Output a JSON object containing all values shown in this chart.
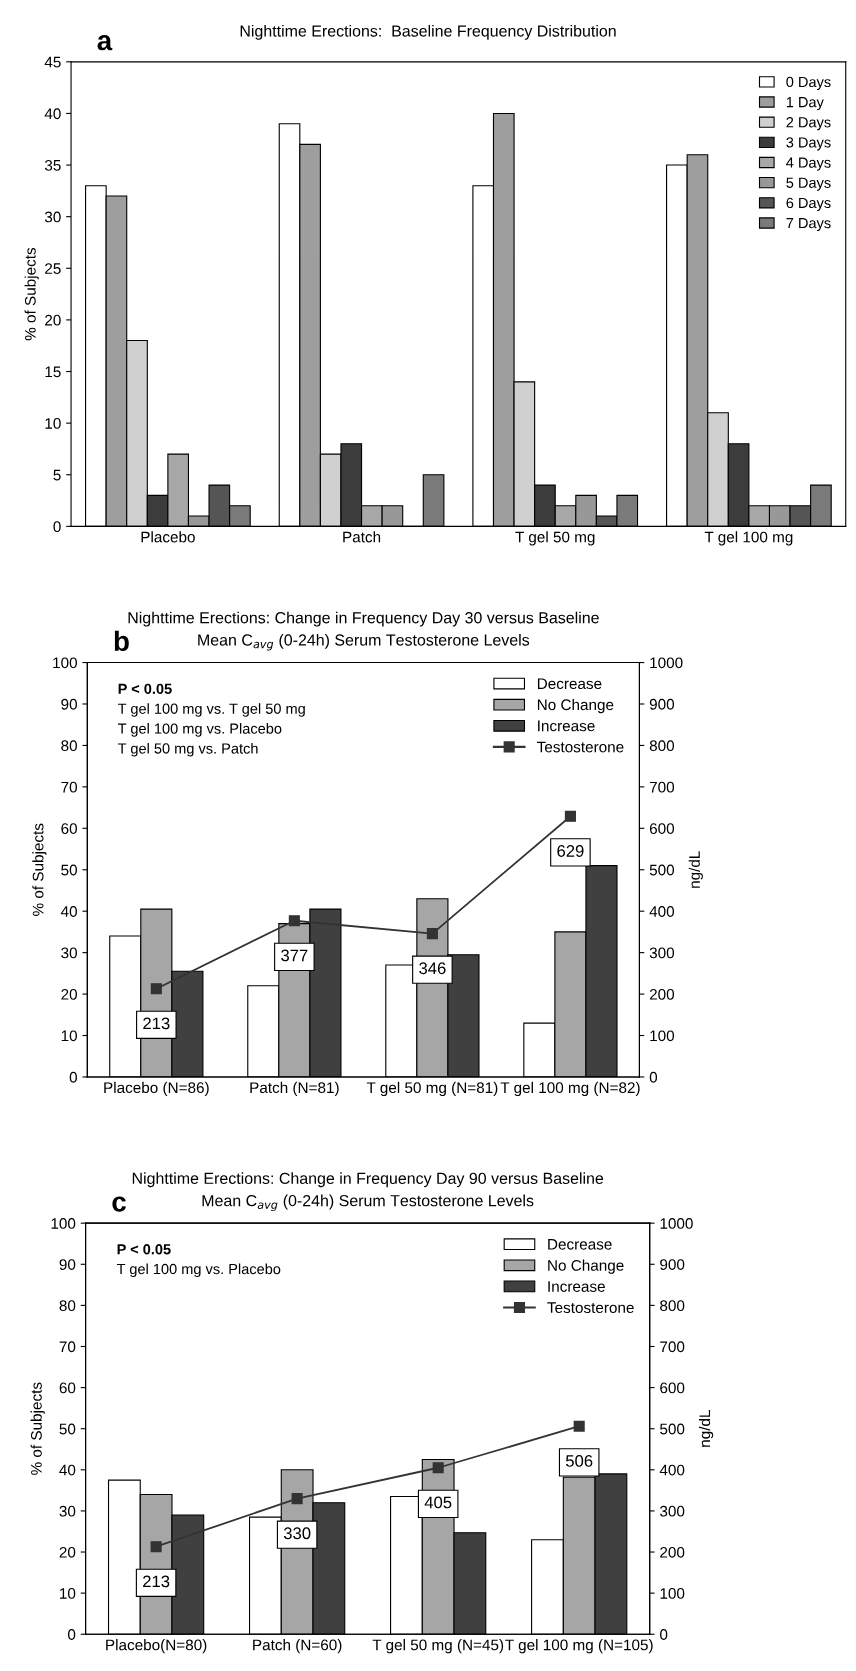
{
  "chart_data": [
    {
      "type": "bar",
      "title": "Nighttime Erections:  Baseline Frequency Distribution",
      "ylabel": "% of Subjects",
      "categories": [
        "Placebo",
        "Patch",
        "T gel 50 mg",
        "T gel 100 mg"
      ],
      "ylim": [
        0,
        45
      ],
      "yticks": [
        0,
        5,
        10,
        15,
        20,
        25,
        30,
        35,
        40,
        45
      ],
      "grid": false,
      "legend": "top right",
      "annotations": [
        "a"
      ],
      "series": [
        {
          "name": "0 Days",
          "color": "#ffffff",
          "values": [
            33,
            39,
            33,
            35
          ]
        },
        {
          "name": "1 Day",
          "color": "#9e9e9e",
          "values": [
            32,
            37,
            40,
            36
          ]
        },
        {
          "name": "2 Days",
          "color": "#d0d0d0",
          "values": [
            18,
            7,
            14,
            11
          ]
        },
        {
          "name": "3 Days",
          "color": "#3c3c3c",
          "values": [
            3,
            8,
            4,
            8
          ]
        },
        {
          "name": "4 Days",
          "color": "#a8a8a8",
          "values": [
            7,
            2,
            2,
            2
          ]
        },
        {
          "name": "5 Days",
          "color": "#989898",
          "values": [
            1,
            2,
            3,
            2
          ]
        },
        {
          "name": "6 Days",
          "color": "#555555",
          "values": [
            4,
            0,
            1,
            2
          ]
        },
        {
          "name": "7 Days",
          "color": "#7a7a7a",
          "values": [
            2,
            5,
            3,
            4
          ]
        }
      ]
    },
    {
      "type": "bar",
      "title": "Nighttime Erections: Change in Frequency Day 30 versus Baseline",
      "subtitle": "Mean C$_{avg}$ (0-24h) Serum Testosterone Levels",
      "ylabel": "% of Subjects",
      "y2label": "ng/dL",
      "categories": [
        "Placebo (N=86)",
        "Patch (N=81)",
        "T gel 50 mg (N=81)",
        "T gel 100 mg (N=82)"
      ],
      "ylim": [
        0,
        100
      ],
      "yticks": [
        0,
        10,
        20,
        30,
        40,
        50,
        60,
        70,
        80,
        90,
        100
      ],
      "y2lim": [
        0,
        1000
      ],
      "y2ticks": [
        0,
        100,
        200,
        300,
        400,
        500,
        600,
        700,
        800,
        900,
        1000
      ],
      "grid": false,
      "legend": "top right",
      "marker": "square",
      "annotations": [
        "b",
        "P < 0.05",
        "T gel 100 mg vs. T gel 50 mg",
        "T gel 100 mg vs. Placebo",
        "T gel 50 mg vs. Patch"
      ],
      "series": [
        {
          "name": "Decrease",
          "color": "#ffffff",
          "values": [
            34,
            22,
            27,
            13
          ]
        },
        {
          "name": "No Change",
          "color": "#a6a6a6",
          "values": [
            40.5,
            37,
            43,
            35
          ]
        },
        {
          "name": "Increase",
          "color": "#404040",
          "values": [
            25.5,
            40.5,
            29.5,
            51
          ]
        },
        {
          "name": "Testosterone",
          "type": "line",
          "axis": "y2",
          "color": "#333333",
          "values": [
            213,
            377,
            346,
            629
          ],
          "value_labels": [
            "213",
            "377",
            "346",
            "629"
          ]
        }
      ]
    },
    {
      "type": "bar",
      "title": "Nighttime Erections: Change in Frequency Day 90 versus Baseline",
      "subtitle": "Mean C$_{avg}$ (0-24h) Serum Testosterone Levels",
      "ylabel": "% of Subjects",
      "y2label": "ng/dL",
      "categories": [
        "Placebo(N=80)",
        "Patch (N=60)",
        "T gel 50 mg (N=45)",
        "T gel 100 mg (N=105)"
      ],
      "ylim": [
        0,
        100
      ],
      "yticks": [
        0,
        10,
        20,
        30,
        40,
        50,
        60,
        70,
        80,
        90,
        100
      ],
      "y2lim": [
        0,
        1000
      ],
      "y2ticks": [
        0,
        100,
        200,
        300,
        400,
        500,
        600,
        700,
        800,
        900,
        1000
      ],
      "grid": false,
      "legend": "top right",
      "marker": "square",
      "annotations": [
        "c",
        "P < 0.05",
        "T gel 100 mg vs. Placebo"
      ],
      "series": [
        {
          "name": "Decrease",
          "color": "#ffffff",
          "values": [
            37.5,
            28.5,
            33.5,
            23
          ]
        },
        {
          "name": "No Change",
          "color": "#a6a6a6",
          "values": [
            34,
            40,
            42.5,
            38.2
          ]
        },
        {
          "name": "Increase",
          "color": "#404040",
          "values": [
            29,
            32,
            24.7,
            39
          ]
        },
        {
          "name": "Testosterone",
          "type": "line",
          "axis": "y2",
          "color": "#333333",
          "values": [
            213,
            330,
            405,
            506
          ],
          "value_labels": [
            "213",
            "330",
            "405",
            "506"
          ]
        }
      ]
    }
  ]
}
